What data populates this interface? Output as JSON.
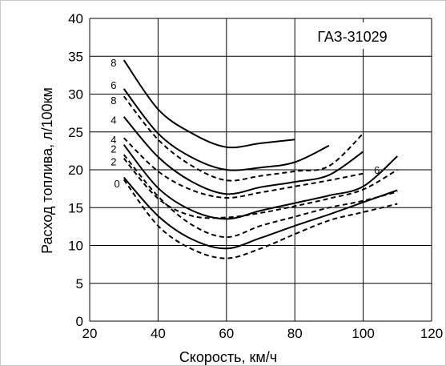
{
  "chart_data": {
    "type": "line",
    "title": "ГАЗ-31029",
    "xlabel": "Скорость, км/ч",
    "ylabel": "Расход топлива, л/100км",
    "xlim": [
      20,
      120
    ],
    "ylim": [
      0,
      40
    ],
    "x_ticks": [
      "20",
      "40",
      "60",
      "80",
      "100",
      "120"
    ],
    "y_ticks": [
      "0",
      "5",
      "10",
      "15",
      "20",
      "25",
      "30",
      "35",
      "40"
    ],
    "grid": true,
    "series": [
      {
        "name": "8",
        "style": "solid",
        "points": [
          [
            30,
            34.5
          ],
          [
            40,
            28
          ],
          [
            50,
            24.8
          ],
          [
            60,
            23.0
          ],
          [
            70,
            23.5
          ],
          [
            80,
            24.0
          ]
        ]
      },
      {
        "name": "6",
        "style": "solid",
        "points": [
          [
            30,
            30.7
          ],
          [
            40,
            24.8
          ],
          [
            50,
            21.6
          ],
          [
            60,
            20.0
          ],
          [
            70,
            20.3
          ],
          [
            80,
            21.0
          ],
          [
            90,
            23.2
          ]
        ]
      },
      {
        "name": "8",
        "style": "dashed",
        "points": [
          [
            30,
            29.7
          ],
          [
            40,
            24.0
          ],
          [
            50,
            20.5
          ],
          [
            60,
            18.6
          ],
          [
            70,
            19.2
          ],
          [
            80,
            19.8
          ],
          [
            90,
            20.5
          ],
          [
            100,
            24.8
          ]
        ]
      },
      {
        "name": "4",
        "style": "solid",
        "points": [
          [
            30,
            27.0
          ],
          [
            40,
            21.7
          ],
          [
            50,
            18.4
          ],
          [
            60,
            16.8
          ],
          [
            70,
            17.7
          ],
          [
            80,
            18.4
          ],
          [
            90,
            19.3
          ],
          [
            100,
            22.4
          ]
        ]
      },
      {
        "name": "4",
        "style": "dashed",
        "points": [
          [
            30,
            24.2
          ],
          [
            40,
            19.8
          ],
          [
            50,
            17.3
          ],
          [
            60,
            16.3
          ],
          [
            70,
            17.0
          ],
          [
            80,
            17.8
          ],
          [
            90,
            18.6
          ],
          [
            100,
            19.5
          ]
        ]
      },
      {
        "name": "2",
        "style": "solid",
        "points": [
          [
            30,
            23.3
          ],
          [
            40,
            17.6
          ],
          [
            50,
            14.6
          ],
          [
            60,
            13.5
          ],
          [
            70,
            14.6
          ],
          [
            80,
            15.6
          ],
          [
            90,
            16.6
          ],
          [
            100,
            17.8
          ],
          [
            110,
            21.8
          ]
        ]
      },
      {
        "name": "2",
        "style": "dashed",
        "points": [
          [
            30,
            21.5
          ],
          [
            40,
            16.2
          ],
          [
            50,
            13.9
          ],
          [
            60,
            13.7
          ],
          [
            70,
            14.3
          ],
          [
            80,
            15.2
          ],
          [
            90,
            16.2
          ],
          [
            100,
            17.4
          ],
          [
            110,
            20.0
          ]
        ]
      },
      {
        "name": "0",
        "style": "solid",
        "points": [
          [
            30,
            19.0
          ],
          [
            40,
            13.9
          ],
          [
            50,
            10.8
          ],
          [
            60,
            9.6
          ],
          [
            70,
            11.0
          ],
          [
            80,
            12.6
          ],
          [
            90,
            14.1
          ],
          [
            100,
            15.7
          ],
          [
            110,
            17.3
          ]
        ]
      },
      {
        "name": "0",
        "style": "dashed",
        "points": [
          [
            30,
            18.7
          ],
          [
            40,
            12.6
          ],
          [
            50,
            9.5
          ],
          [
            60,
            8.3
          ],
          [
            70,
            9.6
          ],
          [
            80,
            11.5
          ],
          [
            90,
            13.3
          ],
          [
            100,
            14.4
          ],
          [
            110,
            15.5
          ]
        ]
      },
      {
        "name": "6",
        "style": "dashed",
        "points": [
          [
            30,
            22.0
          ],
          [
            40,
            16.5
          ],
          [
            50,
            12.7
          ],
          [
            60,
            11.1
          ],
          [
            70,
            12.6
          ],
          [
            80,
            13.8
          ],
          [
            90,
            15.0
          ],
          [
            100,
            15.9
          ],
          [
            110,
            17.1
          ]
        ]
      }
    ],
    "curve_labels": [
      {
        "text": "8",
        "x": 27,
        "y": 34.2
      },
      {
        "text": "6",
        "x": 27,
        "y": 31.2
      },
      {
        "text": "8",
        "x": 27,
        "y": 29.2
      },
      {
        "text": "4",
        "x": 27,
        "y": 26.6
      },
      {
        "text": "4",
        "x": 27,
        "y": 24.0
      },
      {
        "text": "2",
        "x": 27,
        "y": 22.8
      },
      {
        "text": "2",
        "x": 27,
        "y": 21.1
      },
      {
        "text": "0",
        "x": 28,
        "y": 18.2
      },
      {
        "text": "6",
        "x": 104,
        "y": 20.0
      }
    ]
  }
}
